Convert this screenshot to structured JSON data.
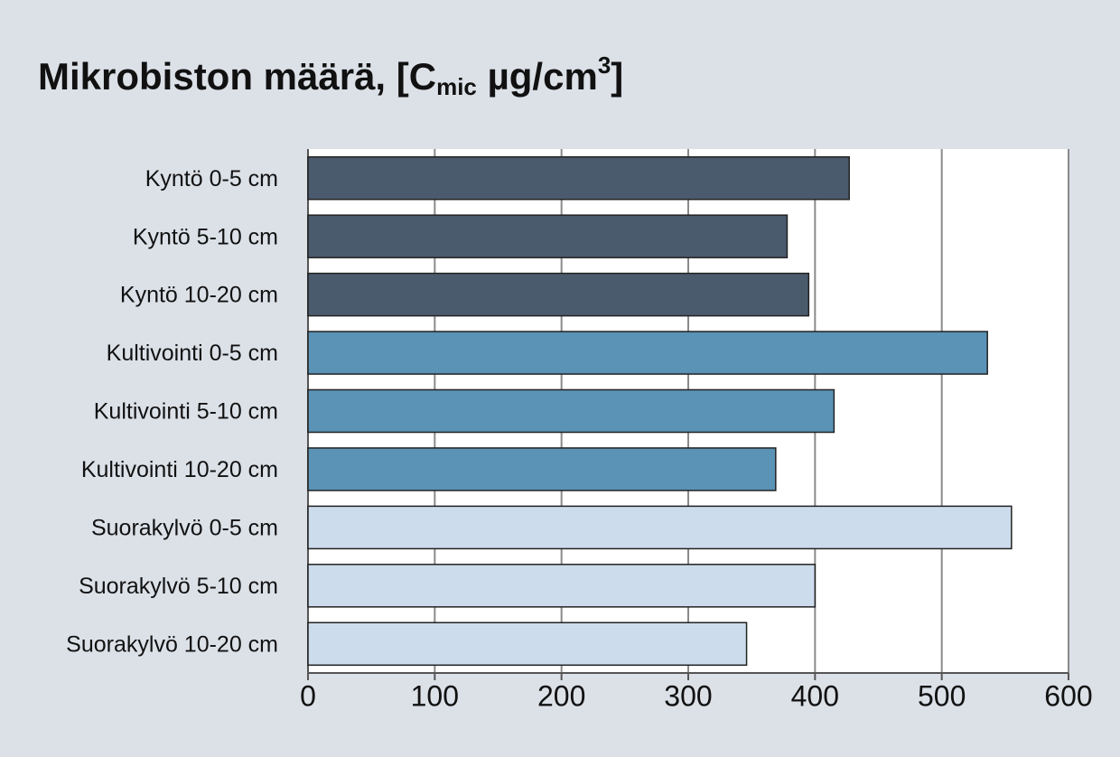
{
  "chart_data": {
    "type": "barh",
    "title_parts": [
      "Mikrobiston määrä, [C",
      "mic",
      " µg/cm",
      "3",
      "]"
    ],
    "categories": [
      "Kyntö 0-5 cm",
      "Kyntö 5-10 cm",
      "Kyntö 10-20 cm",
      "Kultivointi 0-5 cm",
      "Kultivointi 5-10 cm",
      "Kultivointi 10-20 cm",
      "Suorakylvö 0-5 cm",
      "Suorakylvö 5-10 cm",
      "Suorakylvö 10-20 cm"
    ],
    "values": [
      427,
      378,
      395,
      536,
      415,
      369,
      555,
      400,
      346
    ],
    "colors": [
      "#4b5b6e",
      "#4b5b6e",
      "#4b5b6e",
      "#5b93b6",
      "#5b93b6",
      "#5b93b6",
      "#cddcec",
      "#cddcec",
      "#cddcec"
    ],
    "xlim": [
      0,
      600
    ],
    "xticks": [
      0,
      100,
      200,
      300,
      400,
      500,
      600
    ],
    "grid": true
  }
}
